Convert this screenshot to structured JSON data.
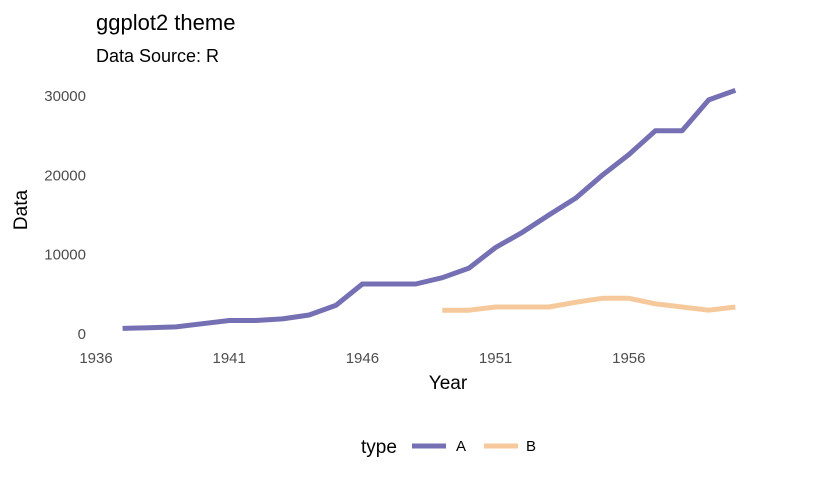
{
  "chart_data": {
    "type": "line",
    "title": "ggplot2 theme",
    "subtitle": "Data Source: R",
    "xlabel": "Year",
    "ylabel": "Data",
    "xlim": [
      1936,
      1961.3
    ],
    "ylim": [
      0,
      31500
    ],
    "x_ticks": [
      1936,
      1941,
      1946,
      1951,
      1956
    ],
    "y_ticks": [
      0,
      10000,
      20000,
      30000
    ],
    "grid": false,
    "legend": {
      "title": "type",
      "position": "bottom"
    },
    "series": [
      {
        "name": "A",
        "color": "#7570b3",
        "x": [
          1937,
          1938,
          1939,
          1940,
          1941,
          1942,
          1943,
          1944,
          1945,
          1946,
          1947,
          1948,
          1949,
          1950,
          1951,
          1952,
          1953,
          1954,
          1955,
          1956,
          1957,
          1958,
          1959,
          1960
        ],
        "values": [
          700,
          800,
          900,
          1300,
          1700,
          1700,
          1900,
          2400,
          3600,
          6300,
          6300,
          6300,
          7100,
          8300,
          10900,
          12800,
          15000,
          17100,
          20000,
          22600,
          25600,
          25600,
          29500,
          30700
        ]
      },
      {
        "name": "B",
        "color": "#f5c99b",
        "x": [
          1949,
          1950,
          1951,
          1952,
          1953,
          1954,
          1955,
          1956,
          1957,
          1958,
          1959,
          1960
        ],
        "values": [
          3000,
          3000,
          3400,
          3400,
          3400,
          4000,
          4500,
          4500,
          3800,
          3400,
          3000,
          3400
        ]
      }
    ]
  }
}
